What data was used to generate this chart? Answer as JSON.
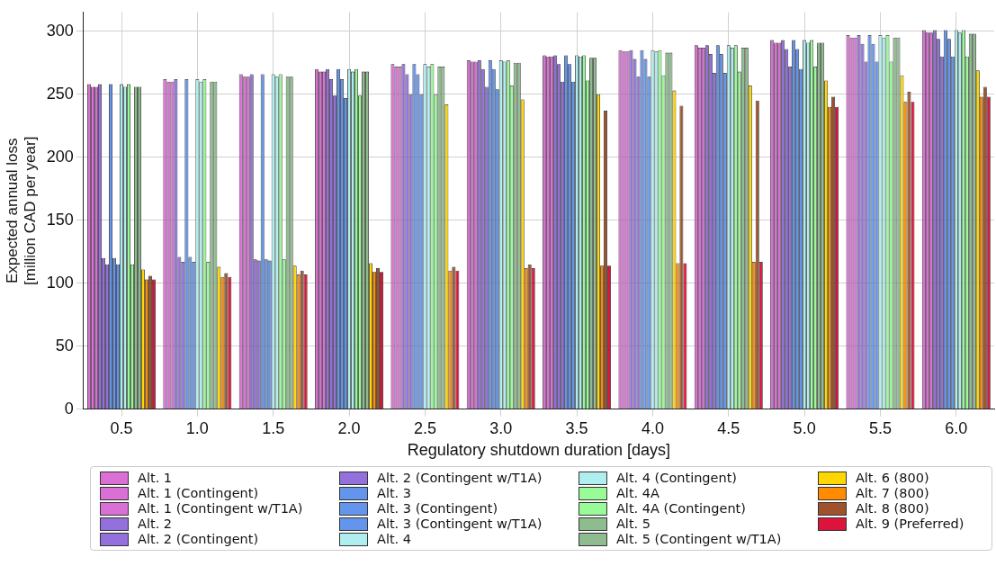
{
  "chart_data": {
    "type": "bar",
    "xlabel": "Regulatory shutdown duration [days]",
    "ylabel": "Expected annual loss\n[million CAD per year]",
    "categories": [
      "0.5",
      "1.0",
      "1.5",
      "2.0",
      "2.5",
      "3.0",
      "3.5",
      "4.0",
      "4.5",
      "5.0",
      "5.5",
      "6.0"
    ],
    "ylim": [
      0,
      315
    ],
    "yticks": [
      0,
      50,
      100,
      150,
      200,
      250,
      300
    ],
    "grid": true,
    "legend": "bottom",
    "series": [
      {
        "name": "Alt. 1",
        "color": "#da70d6",
        "values": [
          258,
          262,
          266,
          270,
          274,
          277,
          281,
          285,
          289,
          293,
          297,
          301
        ]
      },
      {
        "name": "Alt. 1 (Contingent)",
        "color": "#da70d6",
        "values": [
          256,
          260,
          264,
          268,
          272,
          276,
          280,
          284,
          287,
          291,
          295,
          299
        ]
      },
      {
        "name": "Alt. 1 (Contingent w/T1A)",
        "color": "#da70d6",
        "values": [
          256,
          260,
          264,
          268,
          272,
          276,
          280,
          284,
          287,
          291,
          295,
          299
        ]
      },
      {
        "name": "Alt. 2",
        "color": "#9370db",
        "values": [
          258,
          262,
          266,
          270,
          274,
          277,
          281,
          285,
          289,
          293,
          297,
          301
        ]
      },
      {
        "name": "Alt. 2 (Contingent)",
        "color": "#9370db",
        "values": [
          120,
          121,
          119,
          262,
          266,
          270,
          274,
          278,
          282,
          286,
          290,
          294
        ]
      },
      {
        "name": "Alt. 2 (Contingent w/T1A)",
        "color": "#9370db",
        "values": [
          115,
          117,
          118,
          249,
          250,
          256,
          260,
          264,
          267,
          272,
          276,
          280
        ]
      },
      {
        "name": "Alt. 3",
        "color": "#6495ed",
        "values": [
          258,
          262,
          266,
          270,
          274,
          277,
          281,
          285,
          289,
          293,
          297,
          301
        ]
      },
      {
        "name": "Alt. 3 (Contingent)",
        "color": "#6495ed",
        "values": [
          120,
          121,
          119,
          262,
          266,
          270,
          274,
          278,
          282,
          286,
          290,
          294
        ]
      },
      {
        "name": "Alt. 3 (Contingent w/T1A)",
        "color": "#6495ed",
        "values": [
          115,
          117,
          118,
          247,
          250,
          254,
          260,
          264,
          267,
          270,
          276,
          280
        ]
      },
      {
        "name": "Alt. 4",
        "color": "#afeeee",
        "values": [
          258,
          262,
          266,
          270,
          274,
          277,
          281,
          285,
          289,
          293,
          297,
          301
        ]
      },
      {
        "name": "Alt. 4 (Contingent)",
        "color": "#afeeee",
        "values": [
          256,
          260,
          264,
          268,
          272,
          276,
          280,
          284,
          287,
          291,
          295,
          299
        ]
      },
      {
        "name": "Alt. 4A",
        "color": "#98fb98",
        "values": [
          258,
          262,
          266,
          270,
          274,
          277,
          281,
          285,
          289,
          293,
          297,
          301
        ]
      },
      {
        "name": "Alt. 4A (Contingent)",
        "color": "#98fb98",
        "values": [
          115,
          117,
          119,
          249,
          250,
          257,
          261,
          265,
          268,
          272,
          276,
          280
        ]
      },
      {
        "name": "Alt. 5",
        "color": "#8fbc8f",
        "values": [
          256,
          260,
          264,
          268,
          272,
          275,
          279,
          283,
          287,
          291,
          295,
          298
        ]
      },
      {
        "name": "Alt. 5 (Contingent w/T1A)",
        "color": "#8fbc8f",
        "values": [
          256,
          260,
          264,
          268,
          272,
          275,
          279,
          283,
          287,
          291,
          295,
          298
        ]
      },
      {
        "name": "Alt. 6 (800)",
        "color": "#ffd700",
        "values": [
          111,
          113,
          114,
          116,
          242,
          246,
          250,
          253,
          257,
          261,
          265,
          269
        ]
      },
      {
        "name": "Alt. 7 (800)",
        "color": "#ff8c00",
        "values": [
          103,
          105,
          107,
          109,
          110,
          112,
          114,
          116,
          117,
          240,
          244,
          248
        ]
      },
      {
        "name": "Alt. 8 (800)",
        "color": "#a0522d",
        "values": [
          106,
          108,
          110,
          112,
          113,
          115,
          237,
          241,
          245,
          248,
          252,
          256
        ]
      },
      {
        "name": "Alt. 9 (Preferred)",
        "color": "#dc143c",
        "values": [
          103,
          105,
          107,
          109,
          110,
          112,
          114,
          116,
          117,
          240,
          244,
          248
        ]
      }
    ]
  }
}
